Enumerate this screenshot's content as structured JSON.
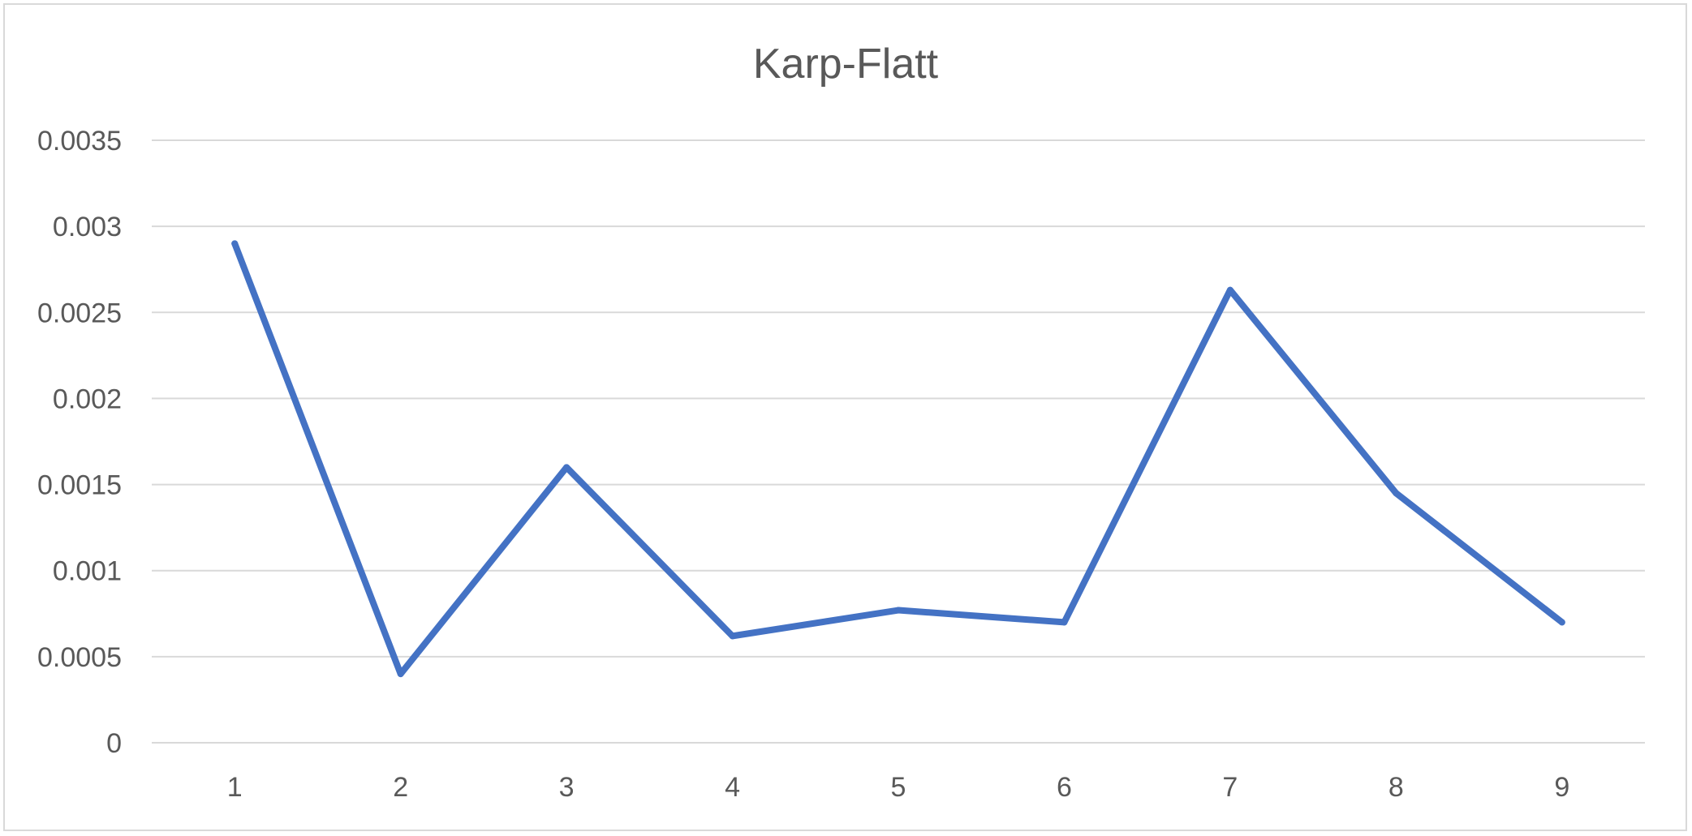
{
  "chart_data": {
    "type": "line",
    "title": "Karp-Flatt",
    "xlabel": "",
    "ylabel": "",
    "categories": [
      "1",
      "2",
      "3",
      "4",
      "5",
      "6",
      "7",
      "8",
      "9"
    ],
    "series": [
      {
        "values": [
          0.0029,
          0.0004,
          0.0016,
          0.00062,
          0.00077,
          0.0007,
          0.00263,
          0.00145,
          0.0007
        ],
        "color": "#4472c4"
      }
    ],
    "ylim": [
      0,
      0.0035
    ],
    "yticks": [
      "0",
      "0.0005",
      "0.001",
      "0.0015",
      "0.002",
      "0.0025",
      "0.003",
      "0.0035"
    ],
    "grid": true,
    "gridline_color": "#d9d9d9",
    "legend": "none"
  }
}
